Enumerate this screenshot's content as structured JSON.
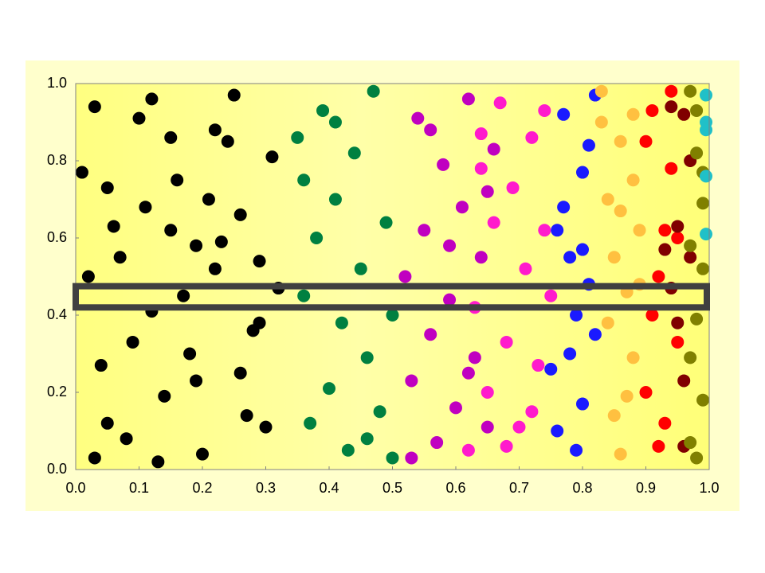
{
  "chart_data": {
    "type": "scatter",
    "xlim": [
      0,
      1
    ],
    "ylim": [
      0,
      1
    ],
    "xticks": [
      {
        "value": 0,
        "label": "0.0"
      },
      0.1,
      0.2,
      0.3,
      0.4,
      0.5,
      0.6,
      0.7,
      0.8,
      0.9,
      {
        "value": 1,
        "label": "1.0"
      }
    ],
    "yticks": [
      {
        "value": 0,
        "label": "0.0"
      },
      0.2,
      0.4,
      0.6,
      0.8,
      {
        "value": 1,
        "label": "1.0"
      }
    ],
    "grid": false,
    "highlight_band": [
      0.42,
      0.475
    ],
    "series": [
      {
        "color": "#000000",
        "x": [
          0.01,
          0.03,
          0.05,
          0.07,
          0.09,
          0.11,
          0.13,
          0.15,
          0.17,
          0.19,
          0.21,
          0.23,
          0.25,
          0.27,
          0.29,
          0.31,
          0.02,
          0.04,
          0.06,
          0.08,
          0.1,
          0.12,
          0.14,
          0.16,
          0.18,
          0.2,
          0.22,
          0.24,
          0.26,
          0.28,
          0.3,
          0.32,
          0.05,
          0.12,
          0.19,
          0.26,
          0.03,
          0.15,
          0.22,
          0.29
        ],
        "values": [
          0.77,
          0.94,
          0.12,
          0.55,
          0.33,
          0.68,
          0.02,
          0.86,
          0.45,
          0.23,
          0.7,
          0.59,
          0.97,
          0.14,
          0.38,
          0.81,
          0.5,
          0.27,
          0.63,
          0.08,
          0.91,
          0.41,
          0.19,
          0.75,
          0.3,
          0.04,
          0.52,
          0.85,
          0.66,
          0.36,
          0.11,
          0.47,
          0.73,
          0.96,
          0.58,
          0.25,
          0.03,
          0.62,
          0.88,
          0.54
        ]
      },
      {
        "color": "#008040",
        "x": [
          0.35,
          0.36,
          0.37,
          0.38,
          0.39,
          0.4,
          0.41,
          0.42,
          0.43,
          0.44,
          0.45,
          0.46,
          0.47,
          0.48,
          0.49,
          0.5,
          0.36,
          0.41,
          0.46,
          0.5
        ],
        "values": [
          0.86,
          0.45,
          0.12,
          0.6,
          0.93,
          0.21,
          0.7,
          0.38,
          0.05,
          0.82,
          0.52,
          0.29,
          0.98,
          0.15,
          0.64,
          0.4,
          0.75,
          0.9,
          0.08,
          0.03
        ]
      },
      {
        "color": "#c000c0",
        "x": [
          0.52,
          0.53,
          0.54,
          0.55,
          0.56,
          0.57,
          0.58,
          0.59,
          0.6,
          0.61,
          0.62,
          0.63,
          0.64,
          0.65,
          0.66,
          0.53,
          0.56,
          0.59,
          0.62,
          0.65
        ],
        "values": [
          0.5,
          0.23,
          0.91,
          0.62,
          0.35,
          0.07,
          0.79,
          0.44,
          0.16,
          0.68,
          0.96,
          0.29,
          0.55,
          0.11,
          0.83,
          0.03,
          0.88,
          0.58,
          0.25,
          0.72
        ]
      },
      {
        "color": "#ff1acc",
        "x": [
          0.62,
          0.63,
          0.64,
          0.65,
          0.66,
          0.67,
          0.68,
          0.69,
          0.7,
          0.71,
          0.72,
          0.73,
          0.74,
          0.75,
          0.64,
          0.68,
          0.72,
          0.74
        ],
        "values": [
          0.05,
          0.42,
          0.87,
          0.2,
          0.64,
          0.95,
          0.33,
          0.73,
          0.11,
          0.52,
          0.86,
          0.27,
          0.62,
          0.45,
          0.78,
          0.06,
          0.15,
          0.93
        ]
      },
      {
        "color": "#1a1aff",
        "x": [
          0.76,
          0.77,
          0.78,
          0.79,
          0.8,
          0.81,
          0.82,
          0.76,
          0.78,
          0.8,
          0.82,
          0.77,
          0.79,
          0.81,
          0.75,
          0.8
        ],
        "values": [
          0.62,
          0.92,
          0.3,
          0.05,
          0.77,
          0.48,
          0.35,
          0.1,
          0.55,
          0.17,
          0.97,
          0.68,
          0.4,
          0.84,
          0.26,
          0.57
        ]
      },
      {
        "color": "#ffc040",
        "x": [
          0.83,
          0.84,
          0.85,
          0.86,
          0.87,
          0.88,
          0.89,
          0.84,
          0.86,
          0.88,
          0.85,
          0.87,
          0.83,
          0.89,
          0.86,
          0.88
        ],
        "values": [
          0.98,
          0.7,
          0.14,
          0.85,
          0.46,
          0.29,
          0.62,
          0.38,
          0.04,
          0.75,
          0.55,
          0.19,
          0.9,
          0.48,
          0.67,
          0.92
        ]
      },
      {
        "color": "#ff0000",
        "x": [
          0.9,
          0.91,
          0.92,
          0.93,
          0.94,
          0.95,
          0.9,
          0.92,
          0.94,
          0.91,
          0.93,
          0.95
        ],
        "values": [
          0.85,
          0.4,
          0.06,
          0.62,
          0.98,
          0.33,
          0.2,
          0.5,
          0.78,
          0.93,
          0.12,
          0.6
        ]
      },
      {
        "color": "#800000",
        "x": [
          0.94,
          0.95,
          0.96,
          0.97,
          0.94,
          0.96,
          0.95,
          0.97,
          0.93,
          0.96
        ],
        "values": [
          0.94,
          0.63,
          0.23,
          0.8,
          0.47,
          0.06,
          0.38,
          0.55,
          0.57,
          0.92
        ]
      },
      {
        "color": "#808000",
        "x": [
          0.97,
          0.98,
          0.99,
          0.97,
          0.98,
          0.99,
          0.97,
          0.98,
          0.99,
          0.97,
          0.98,
          0.99
        ],
        "values": [
          0.98,
          0.82,
          0.69,
          0.58,
          0.39,
          0.18,
          0.07,
          0.93,
          0.52,
          0.29,
          0.03,
          0.77
        ]
      },
      {
        "color": "#20c0c8",
        "x": [
          0.995,
          0.995,
          0.995,
          0.995,
          0.995
        ],
        "values": [
          0.97,
          0.9,
          0.88,
          0.76,
          0.61
        ]
      }
    ]
  }
}
